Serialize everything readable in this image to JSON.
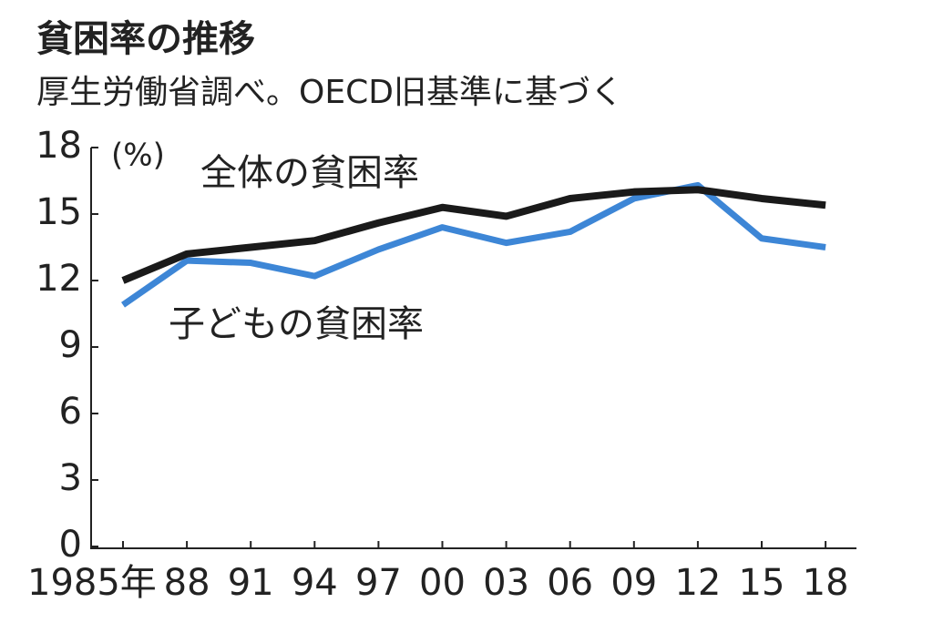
{
  "chart_data": {
    "type": "line",
    "title": "貧困率の推移",
    "subtitle": "厚生労働省調べ。OECD旧基準に基づく",
    "y_unit": "(%)",
    "categories": [
      "1985年",
      "88",
      "91",
      "94",
      "97",
      "00",
      "03",
      "06",
      "09",
      "12",
      "15",
      "18"
    ],
    "series": [
      {
        "name": "全体の貧困率",
        "color": "#1a1a1a",
        "values": [
          12.0,
          13.2,
          13.5,
          13.8,
          14.6,
          15.3,
          14.9,
          15.7,
          16.0,
          16.1,
          15.7,
          15.4
        ]
      },
      {
        "name": "子どもの貧困率",
        "color": "#3d86d6",
        "values": [
          10.9,
          12.9,
          12.8,
          12.2,
          13.4,
          14.4,
          13.7,
          14.2,
          15.7,
          16.3,
          13.9,
          13.5
        ]
      }
    ],
    "ylim": [
      0,
      18
    ],
    "yticks": [
      0,
      3,
      6,
      9,
      12,
      15,
      18
    ]
  }
}
